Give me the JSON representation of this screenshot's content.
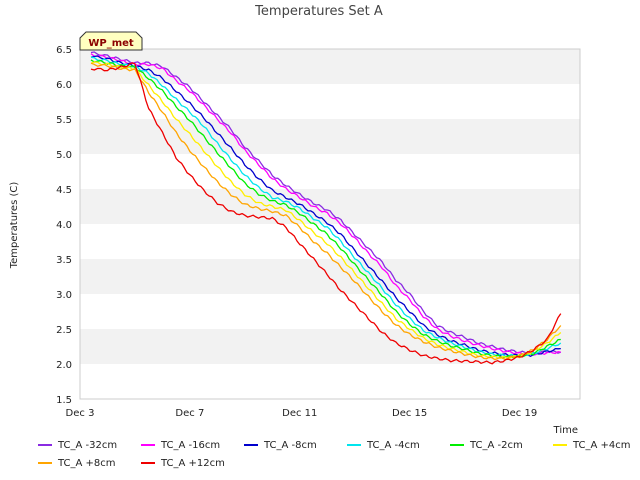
{
  "chart_data": {
    "type": "line",
    "title": "Temperatures Set A",
    "xlabel": "Time",
    "ylabel": "Temperatures (C)",
    "xlim": [
      3,
      21.2
    ],
    "ylim": [
      1.5,
      6.5
    ],
    "x_ticks": [
      {
        "value": 3,
        "label": "Dec 3"
      },
      {
        "value": 7,
        "label": "Dec 7"
      },
      {
        "value": 11,
        "label": "Dec 11"
      },
      {
        "value": 15,
        "label": "Dec 15"
      },
      {
        "value": 19,
        "label": "Dec 19"
      }
    ],
    "y_ticks": [
      1.5,
      2.0,
      2.5,
      3.0,
      3.5,
      4.0,
      4.5,
      5.0,
      5.5,
      6.0,
      6.5
    ],
    "grid": "horizontal bands",
    "annotation": "WP_met",
    "x": [
      3.4,
      4.0,
      4.5,
      5.0,
      5.5,
      6.0,
      6.5,
      7.0,
      7.5,
      8.0,
      8.5,
      9.0,
      9.5,
      10.0,
      10.5,
      11.0,
      11.5,
      12.0,
      12.5,
      13.0,
      13.5,
      14.0,
      14.5,
      15.0,
      15.5,
      16.0,
      16.5,
      17.0,
      17.5,
      18.0,
      18.5,
      19.0,
      19.5,
      20.0,
      20.5
    ],
    "series": [
      {
        "name": "TC_A -32cm",
        "color": "#8a2be2",
        "values": [
          6.45,
          6.4,
          6.35,
          6.3,
          6.3,
          6.25,
          6.1,
          5.95,
          5.75,
          5.55,
          5.35,
          5.1,
          4.9,
          4.7,
          4.55,
          4.42,
          4.3,
          4.2,
          4.05,
          3.85,
          3.65,
          3.45,
          3.2,
          3.0,
          2.75,
          2.55,
          2.45,
          2.38,
          2.3,
          2.25,
          2.2,
          2.17,
          2.15,
          2.18,
          2.17
        ]
      },
      {
        "name": "TC_A -16cm",
        "color": "#ff00ff",
        "values": [
          6.42,
          6.38,
          6.33,
          6.28,
          6.28,
          6.22,
          6.05,
          5.9,
          5.7,
          5.5,
          5.3,
          5.05,
          4.85,
          4.65,
          4.5,
          4.38,
          4.25,
          4.15,
          4.0,
          3.8,
          3.58,
          3.38,
          3.12,
          2.92,
          2.68,
          2.5,
          2.4,
          2.33,
          2.27,
          2.22,
          2.18,
          2.15,
          2.14,
          2.16,
          2.17
        ]
      },
      {
        "name": "TC_A -8cm",
        "color": "#0000cd",
        "values": [
          6.4,
          6.36,
          6.3,
          6.26,
          6.2,
          6.08,
          5.9,
          5.72,
          5.52,
          5.3,
          5.08,
          4.85,
          4.65,
          4.48,
          4.38,
          4.28,
          4.15,
          4.02,
          3.85,
          3.62,
          3.4,
          3.18,
          2.95,
          2.75,
          2.55,
          2.42,
          2.33,
          2.27,
          2.2,
          2.16,
          2.13,
          2.12,
          2.13,
          2.18,
          2.22
        ]
      },
      {
        "name": "TC_A -4cm",
        "color": "#00e5ee",
        "values": [
          6.37,
          6.33,
          6.28,
          6.25,
          6.15,
          5.98,
          5.78,
          5.6,
          5.4,
          5.15,
          4.92,
          4.7,
          4.52,
          4.38,
          4.32,
          4.22,
          4.08,
          3.95,
          3.75,
          3.52,
          3.3,
          3.08,
          2.85,
          2.65,
          2.48,
          2.38,
          2.3,
          2.24,
          2.18,
          2.14,
          2.12,
          2.12,
          2.15,
          2.22,
          2.3
        ]
      },
      {
        "name": "TC_A -2cm",
        "color": "#00ee00",
        "values": [
          6.34,
          6.3,
          6.26,
          6.24,
          6.08,
          5.9,
          5.68,
          5.48,
          5.25,
          5.02,
          4.8,
          4.58,
          4.43,
          4.33,
          4.27,
          4.15,
          4.0,
          3.85,
          3.65,
          3.42,
          3.2,
          2.98,
          2.75,
          2.57,
          2.42,
          2.33,
          2.26,
          2.21,
          2.15,
          2.12,
          2.1,
          2.11,
          2.15,
          2.25,
          2.35
        ]
      },
      {
        "name": "TC_A +4cm",
        "color": "#ffee00",
        "values": [
          6.31,
          6.28,
          6.24,
          6.22,
          5.98,
          5.75,
          5.5,
          5.28,
          5.05,
          4.82,
          4.6,
          4.42,
          4.3,
          4.25,
          4.2,
          4.05,
          3.88,
          3.72,
          3.52,
          3.3,
          3.08,
          2.86,
          2.65,
          2.5,
          2.37,
          2.28,
          2.22,
          2.17,
          2.12,
          2.1,
          2.09,
          2.11,
          2.18,
          2.3,
          2.45
        ]
      },
      {
        "name": "TC_A +8cm",
        "color": "#ffa500",
        "values": [
          6.28,
          6.26,
          6.22,
          6.2,
          5.88,
          5.6,
          5.3,
          5.05,
          4.82,
          4.6,
          4.42,
          4.28,
          4.22,
          4.18,
          4.12,
          3.95,
          3.75,
          3.58,
          3.38,
          3.18,
          2.96,
          2.75,
          2.56,
          2.42,
          2.32,
          2.24,
          2.19,
          2.14,
          2.1,
          2.08,
          2.08,
          2.12,
          2.2,
          2.35,
          2.55
        ]
      },
      {
        "name": "TC_A +12cm",
        "color": "#ee0000",
        "values": [
          6.22,
          6.2,
          6.24,
          6.3,
          5.65,
          5.3,
          4.95,
          4.7,
          4.48,
          4.3,
          4.18,
          4.12,
          4.1,
          4.08,
          3.95,
          3.72,
          3.5,
          3.28,
          3.05,
          2.85,
          2.65,
          2.45,
          2.3,
          2.2,
          2.12,
          2.08,
          2.05,
          2.04,
          2.03,
          2.02,
          2.05,
          2.1,
          2.2,
          2.35,
          2.72
        ]
      }
    ]
  }
}
